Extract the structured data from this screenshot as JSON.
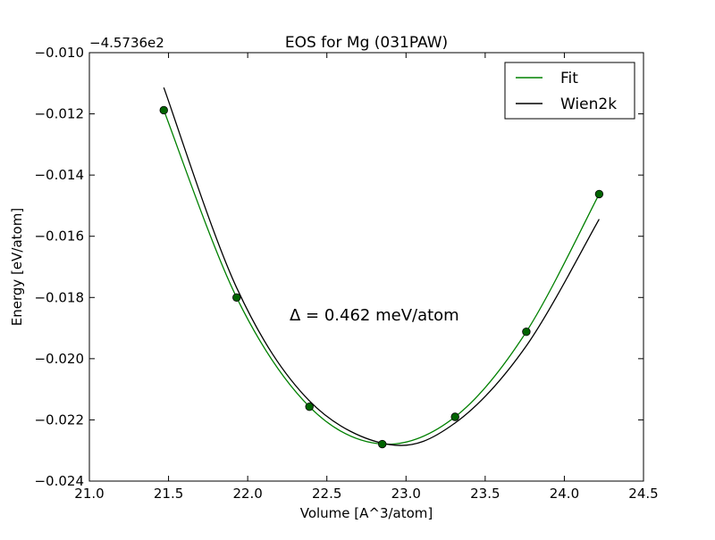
{
  "chart_data": {
    "type": "line",
    "title": "EOS for Mg (031PAW)",
    "xlabel": "Volume [A^3/atom]",
    "ylabel": "Energy [eV/atom]",
    "offset_text": "−4.5736e2",
    "annotation": "Δ = 0.462 meV/atom",
    "xlim": [
      21.0,
      24.5
    ],
    "ylim": [
      -0.024,
      -0.01
    ],
    "x_ticks": [
      21.0,
      21.5,
      22.0,
      22.5,
      23.0,
      23.5,
      24.0,
      24.5
    ],
    "x_tick_labels": [
      "21.0",
      "21.5",
      "22.0",
      "22.5",
      "23.0",
      "23.5",
      "24.0",
      "24.5"
    ],
    "y_ticks": [
      -0.01,
      -0.012,
      -0.014,
      -0.016,
      -0.018,
      -0.02,
      -0.022,
      -0.024
    ],
    "y_tick_labels": [
      "−0.010",
      "−0.012",
      "−0.014",
      "−0.016",
      "−0.018",
      "−0.020",
      "−0.022",
      "−0.024"
    ],
    "grid": false,
    "legend_position": "top-right",
    "points": {
      "x": [
        21.47,
        21.93,
        22.39,
        22.85,
        23.31,
        23.76,
        24.22
      ],
      "y": [
        -0.01188,
        -0.018,
        -0.02157,
        -0.02279,
        -0.0219,
        -0.01912,
        -0.01462
      ],
      "color": "#006400"
    },
    "series": [
      {
        "name": "Fit",
        "color": "#008000",
        "x": [
          21.47,
          21.93,
          22.39,
          22.85,
          23.31,
          23.76,
          24.22
        ],
        "y": [
          -0.01188,
          -0.018,
          -0.02157,
          -0.02279,
          -0.0219,
          -0.01912,
          -0.01462
        ]
      },
      {
        "name": "Wien2k",
        "color": "#000000",
        "x": [
          21.47,
          21.93,
          22.39,
          22.9,
          23.31,
          23.76,
          24.22
        ],
        "y": [
          -0.01114,
          -0.01768,
          -0.02138,
          -0.02281,
          -0.0221,
          -0.01958,
          -0.01544
        ]
      }
    ]
  }
}
